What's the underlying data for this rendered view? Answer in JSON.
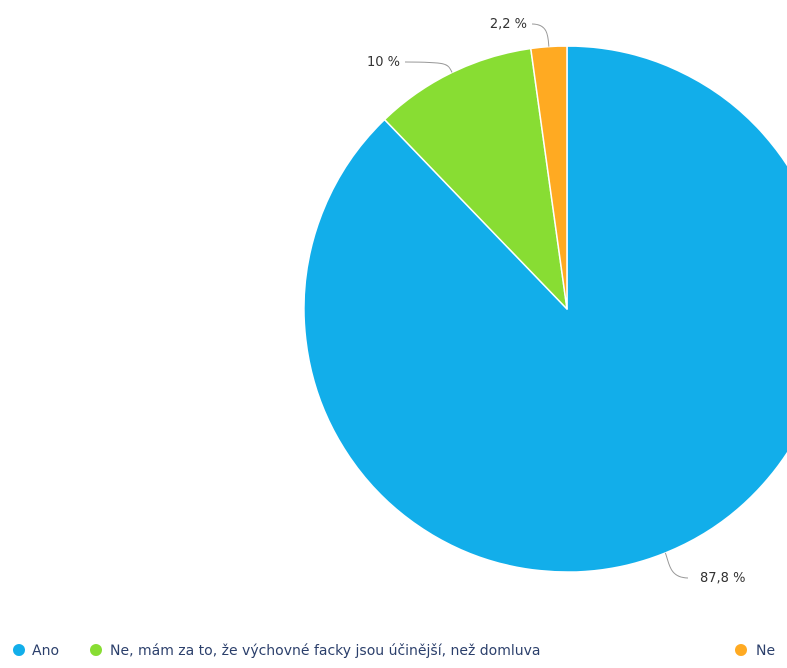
{
  "chart_data": {
    "type": "pie",
    "title": "",
    "slices": [
      {
        "label": "Ano",
        "value": 87.8,
        "value_label": "87,8 %",
        "color": "#12aeea"
      },
      {
        "label": "Ne, mám za to, že výchovné facky jsou účinější, než domluva",
        "value": 10,
        "value_label": "10 %",
        "color": "#88dd33"
      },
      {
        "label": "Ne",
        "value": 2.2,
        "value_label": "2,2 %",
        "color": "#ffaa22"
      }
    ],
    "start_angle_deg": 0,
    "direction": "clockwise",
    "slice_border_color": "#ffffff",
    "leader_line_color": "#999999",
    "legend": {
      "position": "bottom"
    }
  }
}
